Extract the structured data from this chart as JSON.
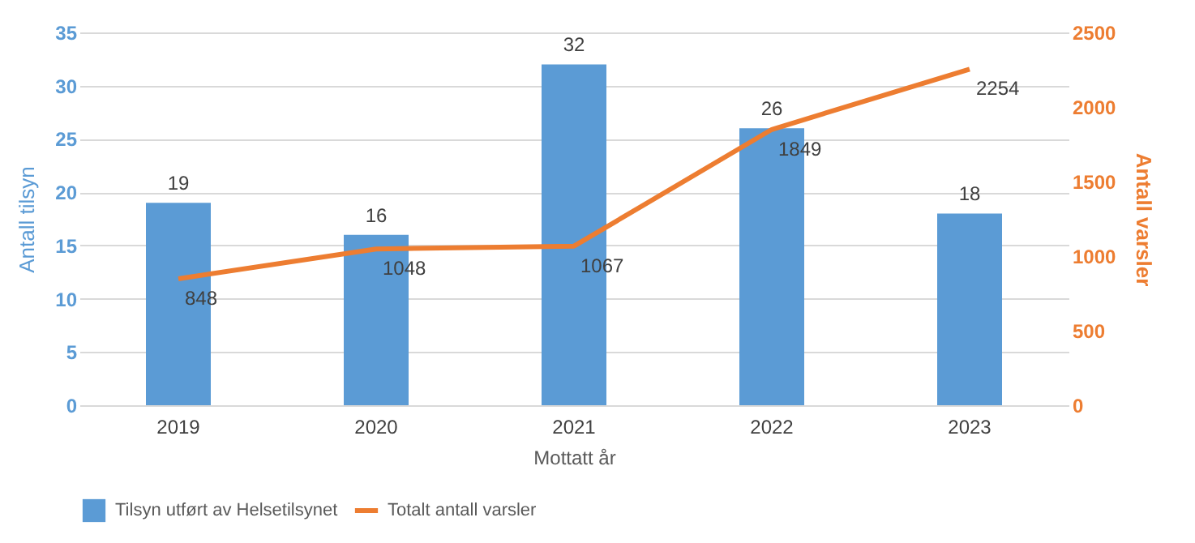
{
  "chart_data": {
    "type": "bar",
    "xlabel": "Mottatt år",
    "ylabel": "Antall tilsyn",
    "y2label": "Antall varsler",
    "categories": [
      "2019",
      "2020",
      "2021",
      "2022",
      "2023"
    ],
    "series": [
      {
        "name": "Tilsyn utført av Helsetilsynet",
        "color": "#5b9bd5",
        "values": [
          19,
          16,
          32,
          26,
          18
        ]
      },
      {
        "name": "Totalt antall varsler",
        "type": "line",
        "axis": "y2",
        "color": "#ed7d31",
        "values": [
          848,
          1048,
          1067,
          1849,
          2254
        ]
      }
    ],
    "ylim": [
      0,
      35
    ],
    "yticks": [
      0,
      5,
      10,
      15,
      20,
      25,
      30,
      35
    ],
    "y2lim": [
      0,
      2500
    ],
    "y2ticks": [
      0,
      500,
      1000,
      1500,
      2000,
      2500
    ],
    "grid": "y",
    "legend": "bottom",
    "data_labels": true,
    "line_style": "solid",
    "marker": "none"
  }
}
